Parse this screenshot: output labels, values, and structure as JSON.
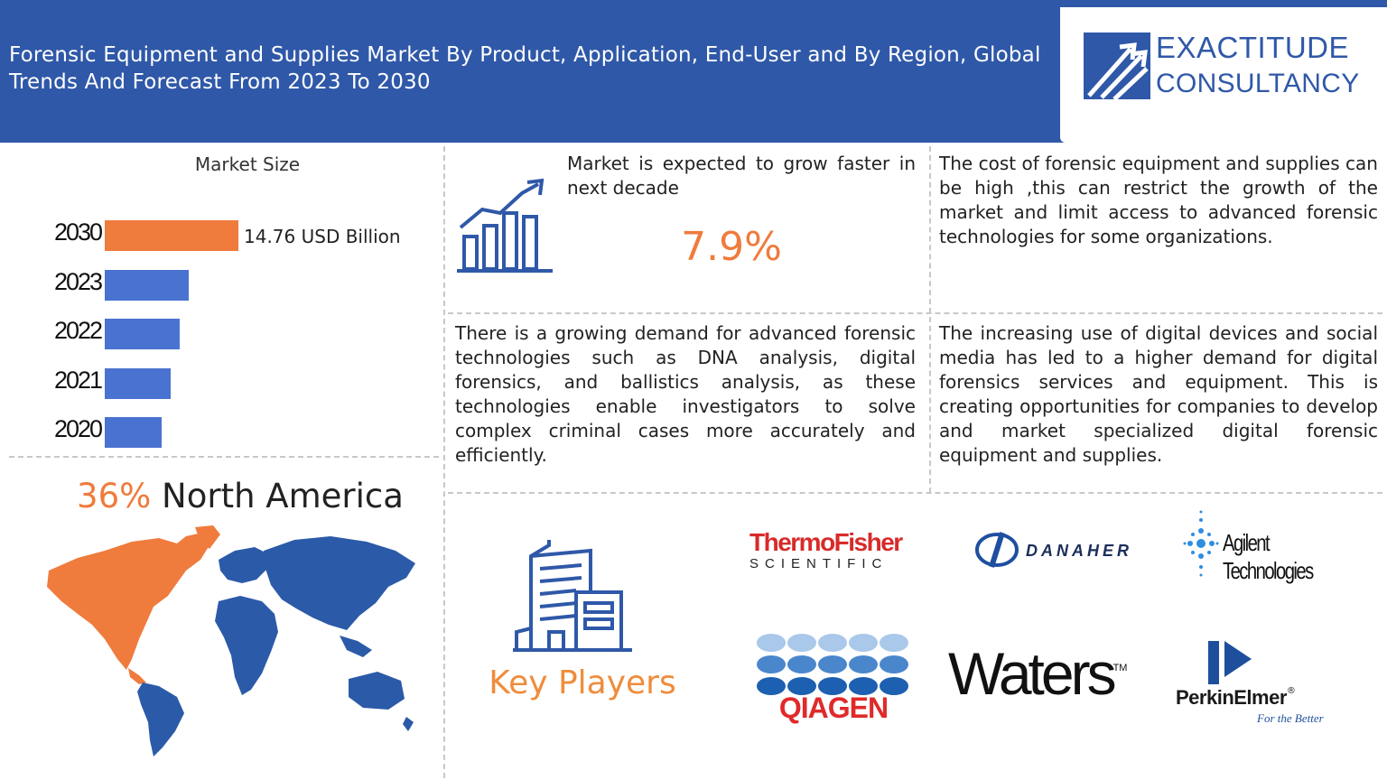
{
  "header": {
    "title": "Forensic Equipment and Supplies Market By Product, Application, End-User and By Region, Global Trends And Forecast From 2023 To 2030"
  },
  "logo": {
    "line1": "EXACTITUDE",
    "line2": "CONSULTANCY"
  },
  "colors": {
    "header_blue": "#2f58a8",
    "bar_blue": "#4a72d0",
    "bar_orange": "#ef7b3c",
    "accent_orange": "#ef7b3c"
  },
  "chart_data": {
    "type": "bar",
    "orientation": "horizontal",
    "title": "Market Size",
    "categories": [
      "2030",
      "2023",
      "2022",
      "2021",
      "2020"
    ],
    "values": [
      14.76,
      9.3,
      8.3,
      7.3,
      6.3
    ],
    "highlight": "2030",
    "value_label": "14.76 USD Billion",
    "xlim": [
      0,
      15
    ]
  },
  "region": {
    "pct": "36%",
    "name": " North America"
  },
  "growth": {
    "text": "Market is expected to grow faster in next decade",
    "cagr": "7.9%"
  },
  "restraint": {
    "text": "The cost of forensic equipment and supplies can be high ,this can restrict the growth of the market and limit access to advanced forensic technologies for some organizations."
  },
  "driver": {
    "text": "There is a growing demand for advanced forensic technologies such as DNA analysis, digital forensics, and ballistics analysis, as these technologies enable investigators to solve complex criminal cases more accurately and efficiently."
  },
  "opportunity": {
    "text": "The increasing use of digital devices and social media has led to a higher demand for digital forensics services and equipment. This is creating opportunities for companies to develop and market specialized digital forensic equipment and supplies."
  },
  "key_players": {
    "label": "Key Players",
    "thermo_line1": "ThermoFisher",
    "thermo_line2": "SCIENTIFIC",
    "danaher": "DANAHER",
    "agilent": "Agilent Technologies",
    "qiagen": "QIAGEN",
    "waters": "Waters",
    "waters_tm": "TM",
    "perkin": "PerkinElmer",
    "perkin_reg": "®",
    "perkin_tagline": "For the Better"
  }
}
